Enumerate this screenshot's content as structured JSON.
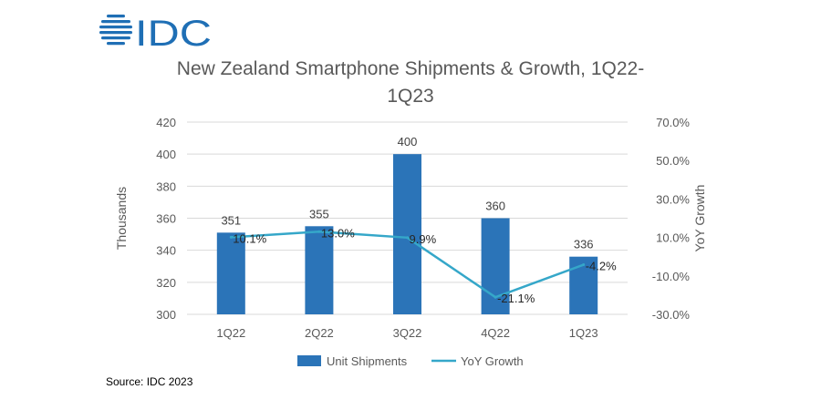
{
  "logo": {
    "text": "IDC",
    "color": "#1f6fb5"
  },
  "source": "Source: IDC 2023",
  "colors": {
    "bar": "#2b74b8",
    "line": "#35a7c9",
    "grid": "#d9d9d9",
    "text": "#595959"
  },
  "chart_data": {
    "type": "bar",
    "title_lines": [
      "New Zealand Smartphone Shipments & Growth, 1Q22-",
      "1Q23"
    ],
    "categories": [
      "1Q22",
      "2Q22",
      "3Q22",
      "4Q22",
      "1Q23"
    ],
    "series": [
      {
        "name": "Unit Shipments",
        "type": "bar",
        "axis": "left",
        "values": [
          351,
          355,
          400,
          360,
          336
        ],
        "labels": [
          "351",
          "355",
          "400",
          "360",
          "336"
        ]
      },
      {
        "name": "YoY Growth",
        "type": "line",
        "axis": "right",
        "values": [
          10.1,
          13.0,
          9.9,
          -21.1,
          -4.2
        ],
        "labels": [
          "10.1%",
          "13.0%",
          "9.9%",
          "-21.1%",
          "-4.2%"
        ]
      }
    ],
    "ylabel": "Thousands",
    "ylim": [
      300,
      420
    ],
    "yticks": [
      "300",
      "320",
      "340",
      "360",
      "380",
      "400",
      "420"
    ],
    "y2label": "YoY Growth",
    "y2lim": [
      -30,
      70
    ],
    "y2ticks": [
      "-30.0%",
      "-10.0%",
      "10.0%",
      "30.0%",
      "50.0%",
      "70.0%"
    ],
    "grid": true,
    "legend": "bottom"
  }
}
